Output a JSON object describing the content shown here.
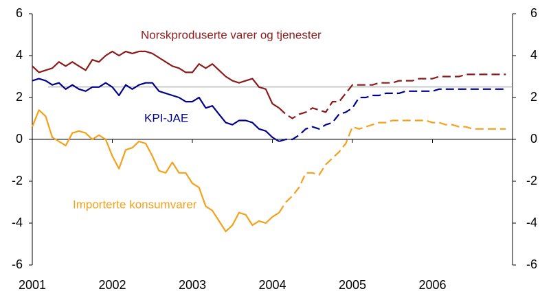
{
  "chart_data": {
    "type": "line",
    "x": [
      2001,
      2001.083,
      2001.167,
      2001.25,
      2001.333,
      2001.417,
      2001.5,
      2001.583,
      2001.667,
      2001.75,
      2001.833,
      2001.917,
      2002,
      2002.083,
      2002.167,
      2002.25,
      2002.333,
      2002.417,
      2002.5,
      2002.583,
      2002.667,
      2002.75,
      2002.833,
      2002.917,
      2003,
      2003.083,
      2003.167,
      2003.25,
      2003.333,
      2003.417,
      2003.5,
      2003.583,
      2003.667,
      2003.75,
      2003.833,
      2003.917,
      2004,
      2004.083,
      2004.167,
      2004.25,
      2004.333,
      2004.417,
      2004.5,
      2004.583,
      2004.667,
      2004.75,
      2004.833,
      2004.917,
      2005,
      2005.083,
      2005.167,
      2005.25,
      2005.333,
      2005.417,
      2005.5,
      2005.583,
      2005.667,
      2005.75,
      2005.833,
      2005.917,
      2006,
      2006.083,
      2006.167,
      2006.25,
      2006.333,
      2006.417,
      2006.5,
      2006.583,
      2006.667,
      2006.75,
      2006.833,
      2006.917
    ],
    "series": [
      {
        "name": "Norskproduserte varer og tjenester",
        "color": "#8b1a1a",
        "values": [
          3.5,
          3.2,
          3.3,
          3.4,
          3.7,
          3.5,
          3.7,
          3.5,
          3.3,
          3.8,
          3.7,
          4.0,
          4.2,
          4.0,
          4.2,
          4.1,
          4.2,
          4.2,
          4.1,
          3.9,
          3.7,
          3.5,
          3.4,
          3.2,
          3.2,
          3.6,
          3.4,
          3.6,
          3.3,
          3.0,
          2.8,
          2.7,
          2.8,
          2.9,
          2.5,
          2.4,
          1.7,
          1.5,
          null,
          null,
          null,
          null,
          null,
          null,
          null,
          null,
          null,
          null,
          null,
          null,
          null,
          null,
          null,
          null,
          null,
          null,
          null,
          null,
          null,
          null,
          null,
          null,
          null,
          null,
          null,
          null,
          null,
          null,
          null,
          null,
          null,
          null
        ],
        "dashed_values": [
          null,
          null,
          null,
          null,
          null,
          null,
          null,
          null,
          null,
          null,
          null,
          null,
          null,
          null,
          null,
          null,
          null,
          null,
          null,
          null,
          null,
          null,
          null,
          null,
          null,
          null,
          null,
          null,
          null,
          null,
          null,
          null,
          null,
          null,
          null,
          null,
          null,
          1.5,
          1.2,
          1.0,
          1.2,
          1.3,
          1.5,
          1.4,
          1.3,
          1.8,
          1.8,
          2.2,
          2.6,
          2.6,
          2.6,
          2.6,
          2.7,
          2.7,
          2.7,
          2.8,
          2.8,
          2.8,
          2.9,
          2.9,
          2.9,
          3.0,
          3.0,
          3.0,
          3.0,
          3.1,
          3.1,
          3.1,
          3.1,
          3.1,
          3.1,
          3.1
        ]
      },
      {
        "name": "KPI-JAE",
        "color": "#00008b",
        "values": [
          2.8,
          2.9,
          2.8,
          2.6,
          2.7,
          2.4,
          2.6,
          2.4,
          2.3,
          2.5,
          2.5,
          2.7,
          2.5,
          2.1,
          2.6,
          2.4,
          2.6,
          2.7,
          2.7,
          2.3,
          2.2,
          2.1,
          2.0,
          1.8,
          1.8,
          2.0,
          1.5,
          1.6,
          1.2,
          0.8,
          0.7,
          0.9,
          0.9,
          0.8,
          0.5,
          0.4,
          0.1,
          -0.1,
          null,
          null,
          null,
          null,
          null,
          null,
          null,
          null,
          null,
          null,
          null,
          null,
          null,
          null,
          null,
          null,
          null,
          null,
          null,
          null,
          null,
          null,
          null,
          null,
          null,
          null,
          null,
          null,
          null,
          null,
          null,
          null,
          null,
          null
        ],
        "dashed_values": [
          null,
          null,
          null,
          null,
          null,
          null,
          null,
          null,
          null,
          null,
          null,
          null,
          null,
          null,
          null,
          null,
          null,
          null,
          null,
          null,
          null,
          null,
          null,
          null,
          null,
          null,
          null,
          null,
          null,
          null,
          null,
          null,
          null,
          null,
          null,
          null,
          null,
          -0.1,
          0.0,
          0.0,
          0.2,
          0.5,
          0.6,
          0.5,
          0.7,
          0.8,
          1.2,
          1.3,
          1.5,
          2.0,
          2.0,
          2.1,
          2.1,
          2.2,
          2.2,
          2.2,
          2.3,
          2.3,
          2.3,
          2.3,
          2.3,
          2.4,
          2.4,
          2.4,
          2.4,
          2.4,
          2.4,
          2.4,
          2.4,
          2.4,
          2.4,
          2.4
        ]
      },
      {
        "name": "Importerte konsumvarer",
        "color": "#f5a01a",
        "values": [
          0.6,
          1.4,
          1.1,
          0.1,
          -0.1,
          -0.3,
          0.3,
          0.4,
          0.3,
          0.0,
          0.2,
          0.0,
          -0.8,
          -1.4,
          -0.5,
          -0.4,
          -0.1,
          -0.2,
          -0.8,
          -1.5,
          -1.6,
          -1.1,
          -1.6,
          -1.6,
          -2.1,
          -2.3,
          -3.2,
          -3.4,
          -3.9,
          -4.4,
          -4.1,
          -3.5,
          -3.6,
          -4.1,
          -3.9,
          -4.0,
          -3.7,
          -3.5,
          null,
          null,
          null,
          null,
          null,
          null,
          null,
          null,
          null,
          null,
          null,
          null,
          null,
          null,
          null,
          null,
          null,
          null,
          null,
          null,
          null,
          null,
          null,
          null,
          null,
          null,
          null,
          null,
          null,
          null,
          null,
          null,
          null,
          null
        ],
        "dashed_values": [
          null,
          null,
          null,
          null,
          null,
          null,
          null,
          null,
          null,
          null,
          null,
          null,
          null,
          null,
          null,
          null,
          null,
          null,
          null,
          null,
          null,
          null,
          null,
          null,
          null,
          null,
          null,
          null,
          null,
          null,
          null,
          null,
          null,
          null,
          null,
          null,
          null,
          -3.5,
          -3.0,
          -2.7,
          -2.3,
          -1.6,
          -1.6,
          -1.7,
          -1.2,
          -0.9,
          -0.6,
          -0.2,
          0.6,
          0.5,
          0.6,
          0.7,
          0.8,
          0.8,
          0.9,
          0.9,
          0.9,
          0.9,
          0.9,
          0.9,
          0.8,
          0.8,
          0.7,
          0.7,
          0.6,
          0.6,
          0.5,
          0.5,
          0.5,
          0.5,
          0.5,
          0.5
        ]
      }
    ],
    "reference_line": {
      "value": 2.5,
      "color": "#999999"
    },
    "xlim": [
      2001,
      2007
    ],
    "xticks": [
      2001,
      2002,
      2003,
      2004,
      2005,
      2006
    ],
    "ylim": [
      -6,
      6
    ],
    "yticks": [
      -6,
      -4,
      -2,
      0,
      2,
      4,
      6
    ],
    "y2lim": [
      -6,
      6
    ],
    "y2ticks": [
      -6,
      -4,
      -2,
      0,
      2,
      4,
      6
    ]
  }
}
